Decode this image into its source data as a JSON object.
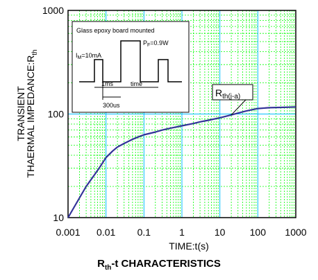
{
  "chart_data": {
    "type": "line",
    "title_main": "R",
    "title_sub": "th",
    "title_rest": "-t CHARACTERISTICS",
    "xlabel": "TIME:t(s)",
    "ylabel_line1": "TRANSIENT",
    "ylabel_line2_main": "THAERMAL IMPEDANCE:R",
    "ylabel_line2_sub": "th",
    "x_scale": "log",
    "y_scale": "log",
    "xlim": [
      0.001,
      1000
    ],
    "ylim": [
      10,
      1000
    ],
    "x_ticks": [
      "0.001",
      "0.01",
      "0.1",
      "1",
      "10",
      "100",
      "1000"
    ],
    "y_ticks": [
      "10",
      "100",
      "1000"
    ],
    "grid": true,
    "grid_color": "#00ff00",
    "major_grid_color": "#00bfff",
    "line_color": "#333399",
    "series": [
      {
        "name": "Rth(j-a)",
        "name_main": "R",
        "name_sub": "th(j-a)",
        "x": [
          0.001,
          0.002,
          0.003,
          0.005,
          0.007,
          0.01,
          0.015,
          0.02,
          0.03,
          0.05,
          0.07,
          0.1,
          0.2,
          0.3,
          0.5,
          1,
          2,
          3,
          5,
          10,
          20,
          30,
          50,
          100,
          200,
          500,
          1000
        ],
        "values": [
          10,
          15.5,
          20,
          26,
          31,
          38,
          44,
          48,
          52,
          57,
          60,
          63,
          67,
          70,
          73,
          77,
          81,
          84,
          87,
          92,
          98,
          102,
          107,
          113,
          115,
          116,
          117
        ]
      }
    ],
    "inset": {
      "title": "Glass epoxy board mounted",
      "im_main": "I",
      "im_sub": "M",
      "im_value": "=10mA",
      "pf_main": "P",
      "pf_sub": "F",
      "pf_value": "=0.9W",
      "dim_1ms": "1ms",
      "dim_time": "time",
      "dim_300us": "300us"
    }
  }
}
